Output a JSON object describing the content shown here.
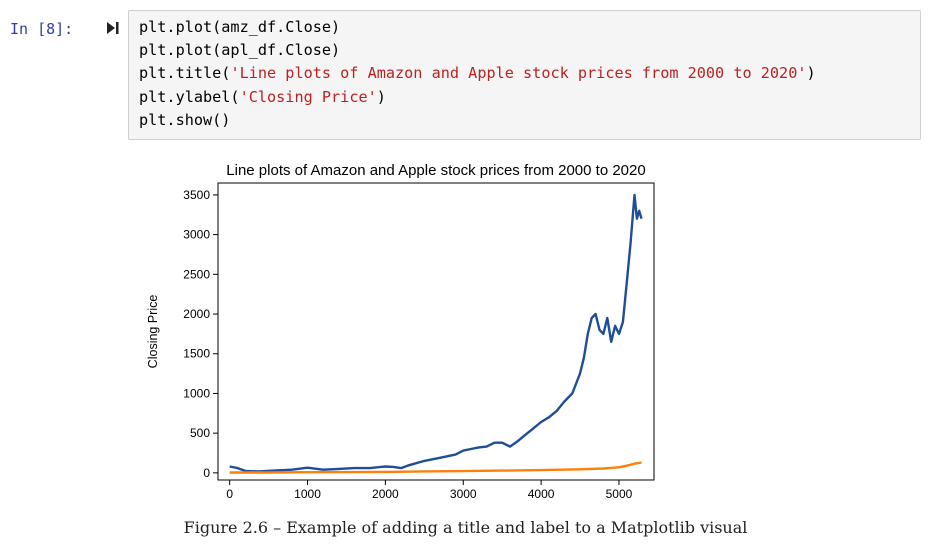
{
  "cell": {
    "prompt": "In [8]:",
    "run_icon": "run-step-icon",
    "code_lines": [
      {
        "plain": "plt.plot(amz_df.Close)"
      },
      {
        "plain": "plt.plot(apl_df.Close)"
      },
      {
        "prefix": "plt.title(",
        "string": "'Line plots of Amazon and Apple stock prices from 2000 to 2020'",
        "suffix": ")"
      },
      {
        "prefix": "plt.ylabel(",
        "string": "'Closing Price'",
        "suffix": ")"
      },
      {
        "plain": "plt.show()"
      }
    ]
  },
  "caption": "Figure 2.6 – Example of adding a title and label to a Matplotlib visual",
  "chart_data": {
    "type": "line",
    "title": "Line plots of Amazon and Apple stock prices from 2000 to 2020",
    "xlabel": "",
    "ylabel": "Closing Price",
    "xlim": [
      -150,
      5450
    ],
    "ylim": [
      -90,
      3650
    ],
    "xticks": [
      0,
      1000,
      2000,
      3000,
      4000,
      5000
    ],
    "yticks": [
      0,
      500,
      1000,
      1500,
      2000,
      2500,
      3000,
      3500
    ],
    "grid": false,
    "series": [
      {
        "color": "#1f4e99",
        "x": [
          0,
          100,
          200,
          300,
          400,
          600,
          800,
          1000,
          1200,
          1400,
          1600,
          1800,
          2000,
          2100,
          2200,
          2300,
          2500,
          2700,
          2900,
          3000,
          3100,
          3200,
          3300,
          3400,
          3500,
          3600,
          3700,
          3800,
          3900,
          4000,
          4100,
          4200,
          4300,
          4400,
          4500,
          4550,
          4600,
          4650,
          4700,
          4750,
          4800,
          4850,
          4900,
          4950,
          5000,
          5050,
          5100,
          5150,
          5200,
          5230,
          5260,
          5290
        ],
        "y": [
          80,
          60,
          25,
          20,
          20,
          30,
          40,
          65,
          40,
          50,
          60,
          60,
          80,
          75,
          60,
          95,
          150,
          190,
          230,
          280,
          300,
          320,
          330,
          380,
          380,
          330,
          400,
          480,
          560,
          640,
          700,
          780,
          900,
          1000,
          1250,
          1450,
          1750,
          1950,
          2000,
          1800,
          1750,
          1950,
          1650,
          1850,
          1750,
          1900,
          2400,
          2900,
          3500,
          3200,
          3300,
          3200
        ]
      },
      {
        "color": "#ff7f0e",
        "x": [
          0,
          500,
          1000,
          1500,
          2000,
          2500,
          3000,
          3500,
          4000,
          4500,
          4800,
          5000,
          5100,
          5200,
          5290
        ],
        "y": [
          5,
          5,
          8,
          10,
          12,
          18,
          22,
          28,
          35,
          45,
          55,
          70,
          90,
          115,
          130
        ]
      }
    ]
  }
}
